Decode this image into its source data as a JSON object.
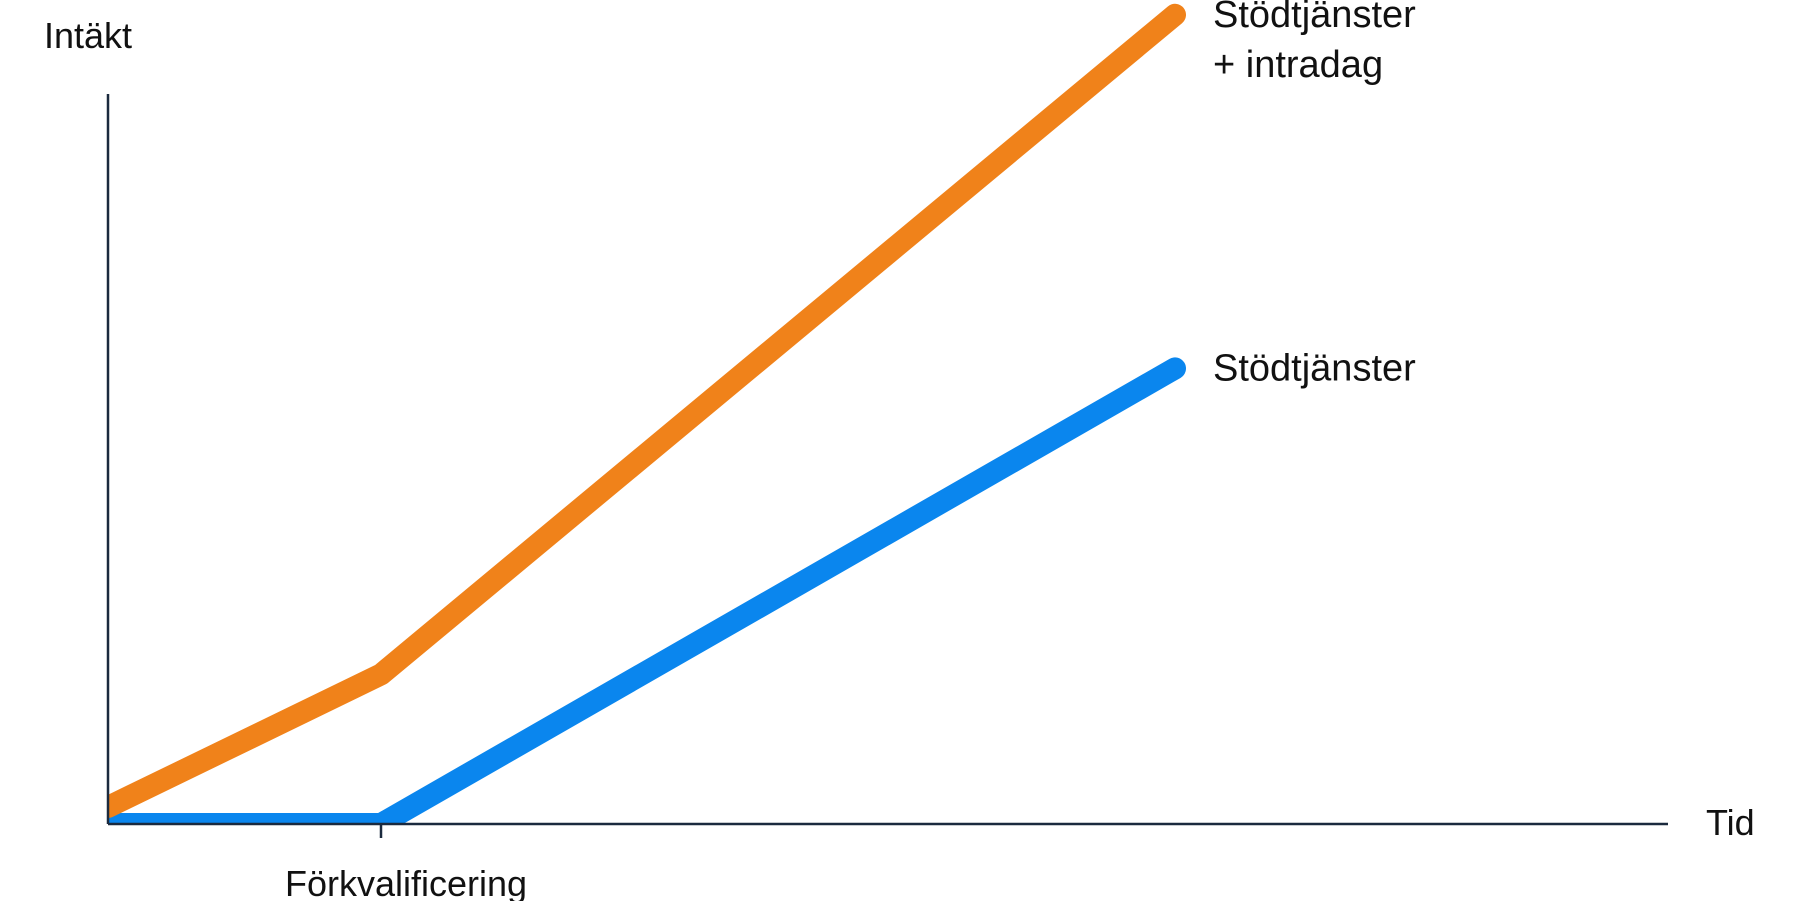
{
  "chart_data": {
    "type": "line",
    "xlabel": "Tid",
    "ylabel": "Intäkt",
    "x_ticks": [
      {
        "x": 1,
        "label": "Förkvalificering"
      }
    ],
    "xlim": [
      0,
      4
    ],
    "ylim": [
      0,
      2.7
    ],
    "grid": false,
    "legend": "end-of-line labels",
    "series": [
      {
        "name": "Stödtjänster + intradag",
        "label_lines": [
          "Stödtjänster",
          "+ intradag"
        ],
        "color": "#F0821A",
        "points": [
          [
            0,
            0.05
          ],
          [
            1,
            0.44
          ],
          [
            4,
            2.38
          ]
        ]
      },
      {
        "name": "Stödtjänster",
        "label_lines": [
          "Stödtjänster"
        ],
        "color": "#0A86EE",
        "points": [
          [
            0,
            0.0
          ],
          [
            1,
            0.0
          ],
          [
            4,
            1.34
          ]
        ]
      }
    ]
  }
}
